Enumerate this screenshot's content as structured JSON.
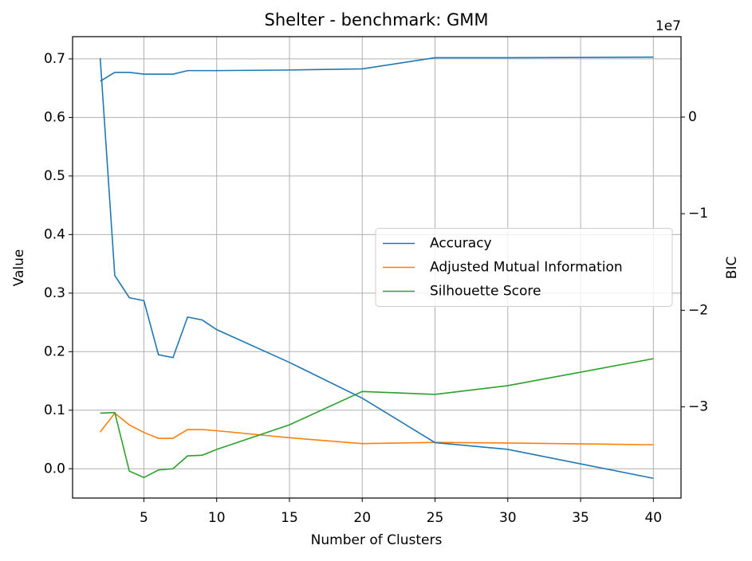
{
  "chart_data": {
    "type": "line",
    "title": "Shelter - benchmark: GMM",
    "xlabel": "Number of Clusters",
    "ylabel": "Value",
    "y2label": "BIC",
    "y2_offset_label": "1e7",
    "x": [
      2,
      3,
      4,
      5,
      6,
      7,
      8,
      9,
      10,
      15,
      20,
      25,
      30,
      40
    ],
    "series": [
      {
        "name": "Accuracy",
        "color": "#1f77b4",
        "values": [
          0.662,
          0.677,
          0.677,
          0.674,
          0.674,
          0.674,
          0.68,
          0.68,
          0.68,
          0.681,
          0.683,
          0.702,
          0.702,
          0.703
        ]
      },
      {
        "name": "Adjusted Mutual Information",
        "color": "#ff7f0e",
        "values": [
          0.063,
          0.095,
          0.075,
          0.062,
          0.052,
          0.052,
          0.067,
          0.067,
          0.065,
          0.053,
          0.043,
          0.045,
          0.044,
          0.041
        ]
      },
      {
        "name": "Silhouette Score",
        "color": "#2ca02c",
        "values": [
          0.095,
          0.096,
          -0.004,
          -0.015,
          -0.002,
          0.0,
          0.022,
          0.023,
          0.033,
          0.075,
          0.132,
          0.127,
          0.142,
          0.188
        ]
      },
      {
        "color": "#1f77b4",
        "axis": "y2",
        "values": [
          6100000,
          -16400000,
          -18700000,
          -19000000,
          -24600000,
          -24900000,
          -20700000,
          -21000000,
          -22000000,
          -25400000,
          -29100000,
          -33700000,
          -34400000,
          -37400000
        ]
      }
    ],
    "xlim": [
      0.1,
      41.9
    ],
    "xticks": [
      5,
      10,
      15,
      20,
      25,
      30,
      35,
      40
    ],
    "ylim": [
      -0.05,
      0.738
    ],
    "yticks": [
      {
        "value": 0,
        "label": "0.0"
      },
      0.1,
      0.2,
      0.3,
      0.4,
      0.5,
      0.6,
      0.7
    ],
    "y2lim": [
      -39440000,
      8330000
    ],
    "y2ticks": [
      {
        "value": -30000000,
        "label": "−3"
      },
      {
        "value": -20000000,
        "label": "−2"
      },
      {
        "value": -10000000,
        "label": "−1"
      },
      0
    ],
    "grid": true,
    "legend": "center right"
  }
}
